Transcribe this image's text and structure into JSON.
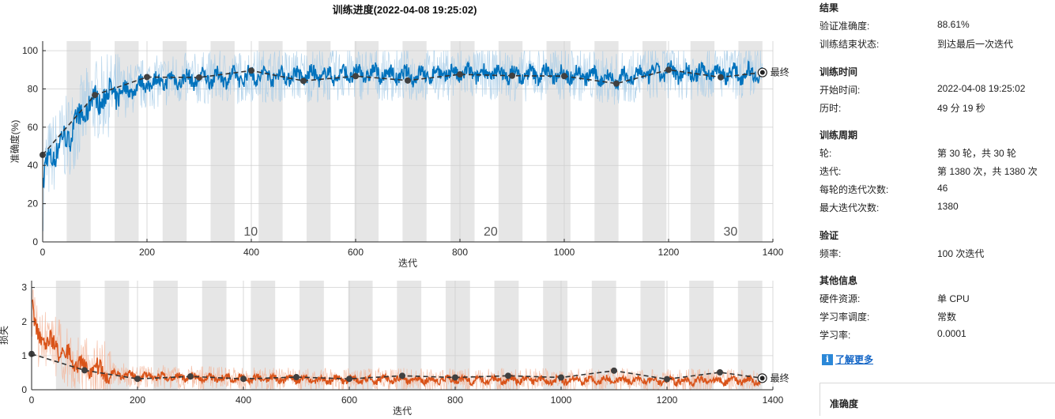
{
  "title": "训练进度(2022-04-08 19:25:02)",
  "colors": {
    "accuracy": "#0072bd",
    "accuracy_light": "#a8cde8",
    "loss": "#d95319",
    "loss_light": "#f3b59a",
    "validation": "#333333",
    "epoch_shade": "#e6e6e6"
  },
  "chart_data": [
    {
      "type": "line",
      "name": "accuracy-plot",
      "xlabel": "迭代",
      "ylabel": "准确度(%)",
      "xlim": [
        0,
        1400
      ],
      "ylim": [
        0,
        105
      ],
      "xticks": [
        "0",
        "200",
        "400",
        "600",
        "800",
        "1000",
        "1200",
        "1400"
      ],
      "yticks": [
        "0",
        "20",
        "40",
        "60",
        "80",
        "100"
      ],
      "epoch_labels": [
        {
          "epoch": "10",
          "x": 414
        },
        {
          "epoch": "20",
          "x": 874
        },
        {
          "epoch": "30",
          "x": 1334
        }
      ],
      "iterations_per_epoch": 46,
      "final_label": "最终",
      "training_smoothed": {
        "x": [
          0,
          5,
          10,
          20,
          30,
          40,
          50,
          60,
          70,
          80,
          90,
          100,
          120,
          140,
          160,
          180,
          200,
          230,
          260,
          290,
          320,
          350,
          380,
          400,
          430,
          460,
          490,
          520,
          560,
          600,
          640,
          680,
          720,
          760,
          800,
          840,
          880,
          920,
          960,
          1000,
          1040,
          1080,
          1100,
          1120,
          1160,
          1200,
          1240,
          1280,
          1320,
          1350,
          1380
        ],
        "y": [
          25,
          38,
          42,
          46,
          50,
          53,
          56,
          60,
          64,
          68,
          72,
          74,
          76,
          78,
          79,
          81,
          83,
          84,
          85,
          85,
          86,
          86,
          86,
          87,
          87,
          87,
          87,
          87,
          87,
          88,
          88,
          87,
          87,
          88,
          88,
          88,
          88,
          87,
          88,
          88,
          87,
          86,
          85,
          86,
          88,
          89,
          88,
          89,
          88,
          88,
          89
        ]
      },
      "validation": {
        "x": [
          0,
          100,
          200,
          300,
          400,
          500,
          600,
          700,
          800,
          900,
          1000,
          1100,
          1200,
          1300,
          1380
        ],
        "y": [
          45.5,
          76.8,
          86.2,
          86.0,
          89.6,
          84.2,
          86.7,
          84.4,
          87.6,
          86.9,
          86.7,
          82.8,
          90.0,
          86.1,
          88.6
        ]
      }
    },
    {
      "type": "line",
      "name": "loss-plot",
      "xlabel": "迭代",
      "ylabel": "损失",
      "xlim": [
        0,
        1400
      ],
      "ylim": [
        0,
        3.2
      ],
      "xticks": [
        "0",
        "200",
        "400",
        "600",
        "800",
        "1000",
        "1200",
        "1400"
      ],
      "yticks": [
        "0",
        "1",
        "2",
        "3"
      ],
      "final_label": "最终",
      "training_smoothed": {
        "x": [
          0,
          5,
          10,
          20,
          30,
          40,
          50,
          60,
          70,
          80,
          90,
          100,
          120,
          140,
          160,
          180,
          200,
          230,
          260,
          290,
          320,
          350,
          380,
          400,
          430,
          460,
          490,
          520,
          560,
          600,
          640,
          680,
          720,
          760,
          800,
          840,
          880,
          920,
          960,
          1000,
          1040,
          1080,
          1100,
          1120,
          1160,
          1200,
          1240,
          1280,
          1320,
          1350,
          1380
        ],
        "y": [
          2.6,
          1.9,
          1.6,
          1.5,
          1.4,
          1.3,
          1.2,
          1.05,
          0.95,
          0.85,
          0.75,
          0.65,
          0.58,
          0.52,
          0.46,
          0.42,
          0.4,
          0.38,
          0.37,
          0.36,
          0.35,
          0.34,
          0.33,
          0.32,
          0.32,
          0.31,
          0.31,
          0.3,
          0.3,
          0.29,
          0.29,
          0.3,
          0.3,
          0.29,
          0.29,
          0.28,
          0.28,
          0.29,
          0.28,
          0.28,
          0.28,
          0.29,
          0.3,
          0.29,
          0.27,
          0.26,
          0.27,
          0.26,
          0.27,
          0.27,
          0.26
        ]
      },
      "validation": {
        "x": [
          0,
          100,
          200,
          300,
          400,
          500,
          600,
          700,
          800,
          900,
          1000,
          1100,
          1200,
          1300,
          1380
        ],
        "y": [
          1.05,
          0.57,
          0.32,
          0.39,
          0.32,
          0.37,
          0.32,
          0.41,
          0.36,
          0.41,
          0.36,
          0.56,
          0.31,
          0.51,
          0.34
        ]
      }
    }
  ],
  "panel": {
    "results": {
      "heading": "结果",
      "rows": [
        {
          "k": "验证准确度:",
          "v": "88.61%"
        },
        {
          "k": "训练结束状态:",
          "v": "到达最后一次迭代"
        }
      ]
    },
    "time": {
      "heading": "训练时间",
      "rows": [
        {
          "k": "开始时间:",
          "v": "2022-04-08 19:25:02"
        },
        {
          "k": "历时:",
          "v": "49 分 19 秒"
        }
      ]
    },
    "cycle": {
      "heading": "训练周期",
      "rows": [
        {
          "k": "轮:",
          "v": "第 30 轮，共 30 轮"
        },
        {
          "k": "迭代:",
          "v": "第 1380 次，共 1380 次"
        },
        {
          "k": "每轮的迭代次数:",
          "v": "46"
        },
        {
          "k": "最大迭代次数:",
          "v": "1380"
        }
      ]
    },
    "validation": {
      "heading": "验证",
      "rows": [
        {
          "k": "频率:",
          "v": "100 次迭代"
        }
      ]
    },
    "other": {
      "heading": "其他信息",
      "rows": [
        {
          "k": "硬件资源:",
          "v": "单 CPU"
        },
        {
          "k": "学习率调度:",
          "v": "常数"
        },
        {
          "k": "学习率:",
          "v": "0.0001"
        }
      ]
    },
    "learn_more": "了解更多",
    "learn_icon": "info-icon",
    "accuracy_box_title": "准确度"
  }
}
